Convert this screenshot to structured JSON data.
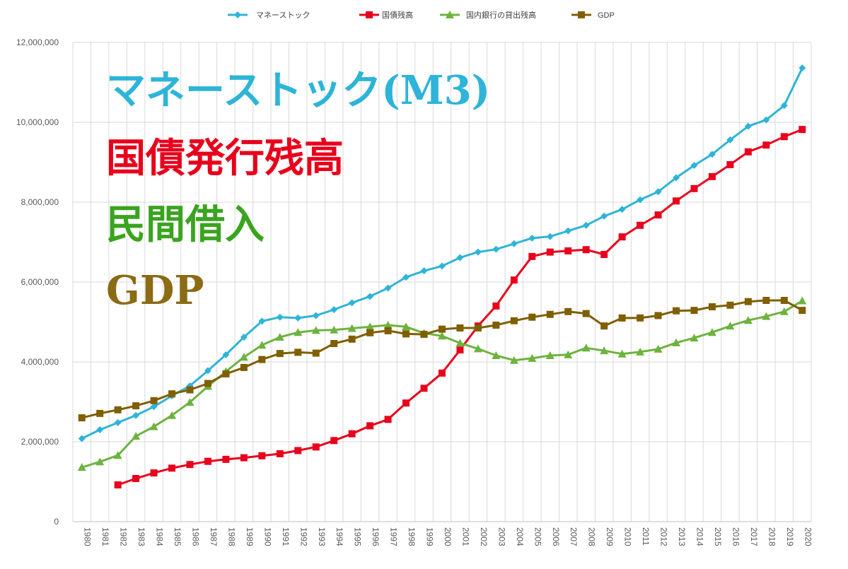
{
  "chart_data": {
    "type": "line",
    "title": "",
    "xlabel": "",
    "ylabel": "",
    "ylim": [
      0,
      12000000
    ],
    "yticks": [
      "0",
      "2,000,000",
      "4,000,000",
      "6,000,000",
      "8,000,000",
      "10,000,000",
      "12,000,000"
    ],
    "categories": [
      "1980",
      "1981",
      "1982",
      "1983",
      "1984",
      "1985",
      "1986",
      "1987",
      "1988",
      "1989",
      "1990",
      "1991",
      "1992",
      "1993",
      "1994",
      "1995",
      "1996",
      "1997",
      "1998",
      "1999",
      "2000",
      "2001",
      "2002",
      "2003",
      "2004",
      "2005",
      "2006",
      "2007",
      "2008",
      "2009",
      "2010",
      "2011",
      "2012",
      "2013",
      "2014",
      "2015",
      "2016",
      "2017",
      "2018",
      "2019",
      "2020"
    ],
    "grid": true,
    "legend_position": "top",
    "series": [
      {
        "name": "マネーストック",
        "color": "#2eb4d8",
        "marker": "diamond",
        "values": [
          2080000,
          2300000,
          2480000,
          2660000,
          2880000,
          3150000,
          3400000,
          3780000,
          4180000,
          4620000,
          5020000,
          5120000,
          5100000,
          5160000,
          5310000,
          5480000,
          5640000,
          5850000,
          6120000,
          6280000,
          6400000,
          6610000,
          6750000,
          6820000,
          6960000,
          7100000,
          7140000,
          7280000,
          7420000,
          7650000,
          7820000,
          8060000,
          8260000,
          8610000,
          8920000,
          9200000,
          9560000,
          9900000,
          10060000,
          10420000,
          11360000
        ]
      },
      {
        "name": "国債残高",
        "color": "#e8001c",
        "marker": "square",
        "values": [
          null,
          null,
          920000,
          1080000,
          1220000,
          1340000,
          1430000,
          1510000,
          1560000,
          1600000,
          1650000,
          1700000,
          1780000,
          1870000,
          2030000,
          2200000,
          2400000,
          2560000,
          2970000,
          3340000,
          3720000,
          4300000,
          4900000,
          5400000,
          6050000,
          6640000,
          6750000,
          6780000,
          6810000,
          6690000,
          7130000,
          7420000,
          7680000,
          8030000,
          8340000,
          8640000,
          8940000,
          9260000,
          9430000,
          9640000,
          9820000
        ]
      },
      {
        "name": "国内銀行の貸出残高",
        "color": "#6db33f",
        "marker": "triangle",
        "values": [
          1360000,
          1500000,
          1660000,
          2140000,
          2380000,
          2660000,
          2990000,
          3390000,
          3760000,
          4120000,
          4420000,
          4620000,
          4740000,
          4790000,
          4800000,
          4840000,
          4880000,
          4920000,
          4880000,
          4720000,
          4650000,
          4470000,
          4330000,
          4160000,
          4040000,
          4090000,
          4160000,
          4180000,
          4350000,
          4280000,
          4200000,
          4250000,
          4320000,
          4480000,
          4600000,
          4740000,
          4900000,
          5040000,
          5140000,
          5260000,
          5530000
        ]
      },
      {
        "name": "GDP",
        "color": "#7f5f00",
        "marker": "square",
        "values": [
          2600000,
          2710000,
          2800000,
          2900000,
          3030000,
          3200000,
          3300000,
          3460000,
          3700000,
          3860000,
          4060000,
          4210000,
          4240000,
          4220000,
          4460000,
          4570000,
          4730000,
          4780000,
          4700000,
          4690000,
          4820000,
          4850000,
          4850000,
          4920000,
          5030000,
          5120000,
          5190000,
          5260000,
          5210000,
          4900000,
          5100000,
          5100000,
          5160000,
          5280000,
          5290000,
          5380000,
          5420000,
          5510000,
          5540000,
          5540000,
          5290000
        ]
      }
    ]
  },
  "overlay": {
    "lines": [
      {
        "text": "マネーストック(M3)",
        "color": "#2eb4d8"
      },
      {
        "text": "国債発行残高",
        "color": "#e8001c"
      },
      {
        "text": "民間借入",
        "color": "#3aa41f"
      },
      {
        "text": "GDP",
        "color": "#8b6b14"
      }
    ]
  }
}
